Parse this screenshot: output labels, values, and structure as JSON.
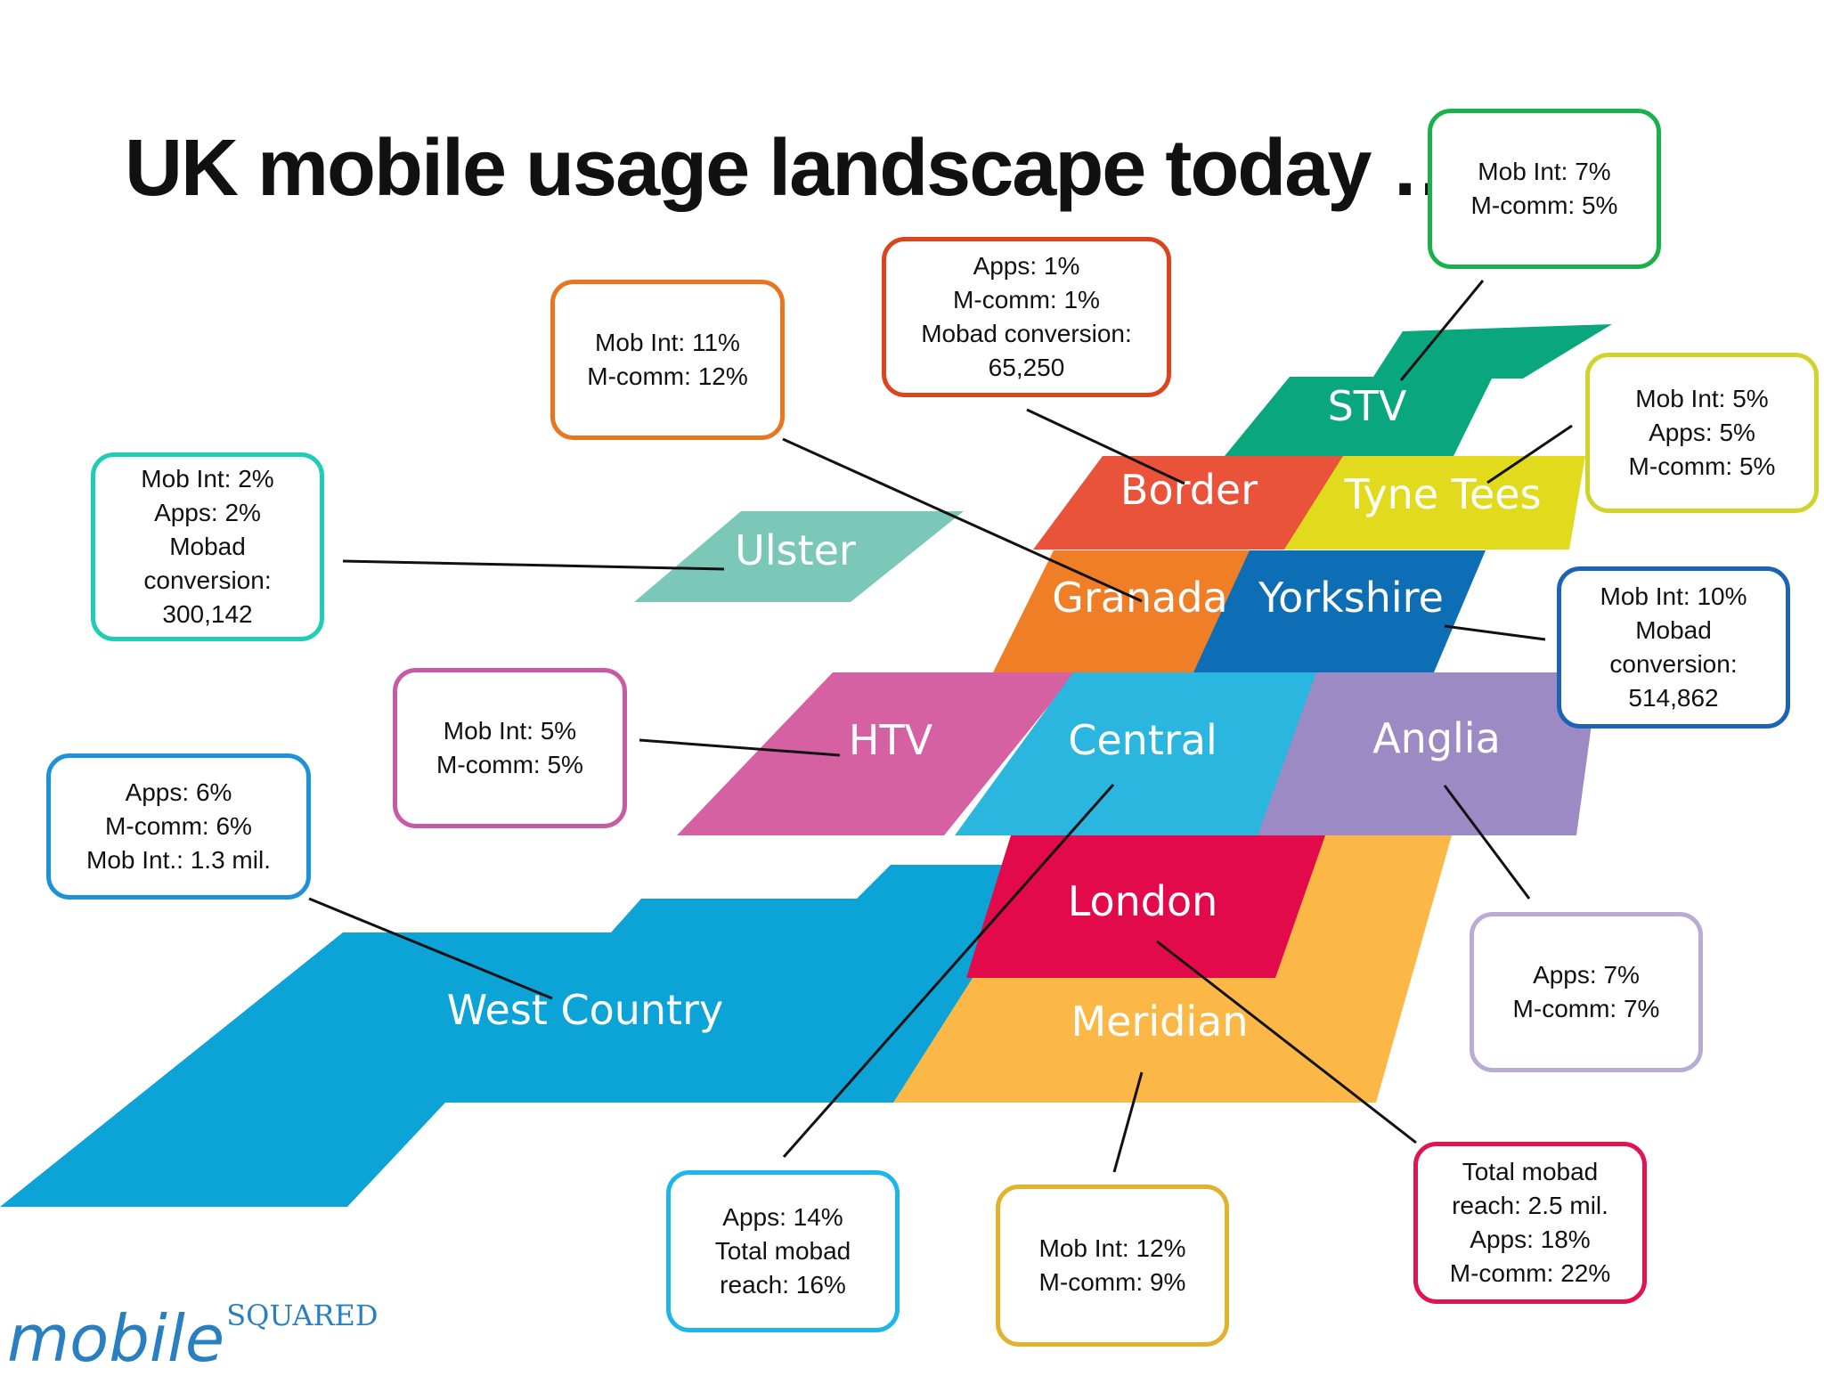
{
  "title": "UK mobile usage landscape today …",
  "colors": {
    "stv": "#0aa67e",
    "border": "#e8533a",
    "tyne_tees": "#e2db1d",
    "ulster": "#7cc8b8",
    "granada": "#ef7e27",
    "yorkshire": "#0d6db5",
    "htv": "#d661a2",
    "central": "#2bb6df",
    "anglia": "#9b8ac3",
    "london": "#e30a4c",
    "meridian": "#fbb846",
    "west_country": "#0ca3d6"
  },
  "regions": {
    "stv": "STV",
    "border": "Border",
    "tyne_tees": "Tyne Tees",
    "ulster": "Ulster",
    "granada": "Granada",
    "yorkshire": "Yorkshire",
    "htv": "HTV",
    "central": "Central",
    "anglia": "Anglia",
    "london": "London",
    "meridian": "Meridian",
    "west_country": "West Country"
  },
  "callouts": {
    "stv": {
      "color": "#1ab14a",
      "lines": [
        "Mob Int: 7%",
        "M-comm: 5%"
      ]
    },
    "border": {
      "color": "#d9461e",
      "lines": [
        "Apps: 1%",
        "M-comm: 1%",
        "Mobad conversion:",
        "65,250"
      ]
    },
    "granada": {
      "color": "#e8761e",
      "lines": [
        "Mob Int: 11%",
        "M-comm: 12%"
      ]
    },
    "tyne_tees": {
      "color": "#cfd32a",
      "lines": [
        "Mob Int: 5%",
        "Apps: 5%",
        "M-comm: 5%"
      ]
    },
    "ulster": {
      "color": "#1fcdb7",
      "lines": [
        "Mob Int: 2%",
        "Apps: 2%",
        "Mobad",
        "conversion:",
        "300,142"
      ]
    },
    "yorkshire": {
      "color": "#1c63b6",
      "lines": [
        "Mob Int: 10%",
        "Mobad",
        "conversion:",
        "514,862"
      ]
    },
    "htv": {
      "color": "#c85aa5",
      "lines": [
        "Mob Int: 5%",
        "M-comm: 5%"
      ]
    },
    "west_country": {
      "color": "#1e92d8",
      "lines": [
        "Apps: 6%",
        "M-comm: 6%",
        "Mob Int.:  1.3 mil."
      ]
    },
    "anglia": {
      "color": "#b9abd3",
      "lines": [
        "Apps: 7%",
        "M-comm: 7%"
      ]
    },
    "central": {
      "color": "#1eb5ea",
      "lines": [
        "Apps: 14%",
        "Total mobad",
        "reach: 16%"
      ]
    },
    "meridian": {
      "color": "#e0b22e",
      "lines": [
        "Mob Int: 12%",
        "M-comm: 9%"
      ]
    },
    "london": {
      "color": "#e0144f",
      "lines": [
        "Total mobad",
        "reach: 2.5 mil.",
        "Apps: 18%",
        "M-comm: 22%"
      ]
    }
  },
  "logo": {
    "main": "mobile",
    "sup": "SQUARED"
  }
}
